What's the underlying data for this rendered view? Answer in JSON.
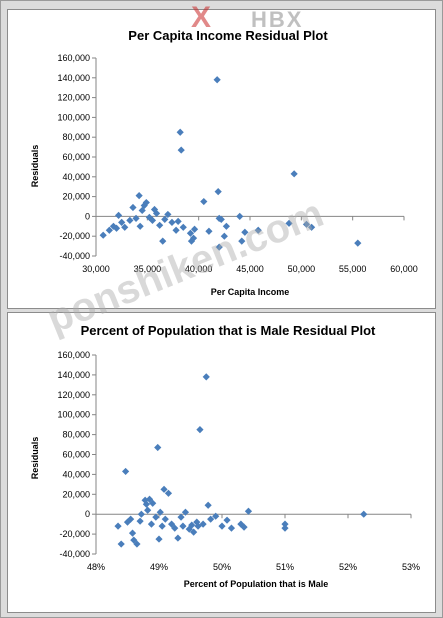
{
  "watermark": {
    "logo_x": "X",
    "logo_text": "HBX",
    "site": "ponshiken.com"
  },
  "chart_data": [
    {
      "type": "scatter",
      "title": "Per Capita Income Residual Plot",
      "xlabel": "Per Capita Income",
      "ylabel": "Residuals",
      "xlim": [
        30000,
        60000
      ],
      "ylim": [
        -40000,
        160000
      ],
      "x_ticks": [
        "30,000",
        "35,000",
        "40,000",
        "45,000",
        "50,000",
        "55,000",
        "60,000"
      ],
      "y_ticks": [
        "160,000",
        "140,000",
        "120,000",
        "100,000",
        "80,000",
        "60,000",
        "40,000",
        "20,000",
        "0",
        "-20,000",
        "-40,000"
      ],
      "marker_color": "#4a7ebb",
      "points": [
        [
          30700,
          -19000
        ],
        [
          31300,
          -14000
        ],
        [
          31700,
          -10000
        ],
        [
          32000,
          -12000
        ],
        [
          32200,
          1000
        ],
        [
          32500,
          -6000
        ],
        [
          32800,
          -11000
        ],
        [
          33300,
          -4000
        ],
        [
          33600,
          9000
        ],
        [
          33900,
          -2000
        ],
        [
          34200,
          21000
        ],
        [
          34300,
          -10000
        ],
        [
          34500,
          6000
        ],
        [
          34700,
          11000
        ],
        [
          34900,
          14000
        ],
        [
          35200,
          -1000
        ],
        [
          35500,
          -4000
        ],
        [
          35700,
          7000
        ],
        [
          35900,
          3000
        ],
        [
          36200,
          -9000
        ],
        [
          36500,
          -25000
        ],
        [
          36700,
          -3000
        ],
        [
          37000,
          2000
        ],
        [
          37400,
          -6000
        ],
        [
          37800,
          -14000
        ],
        [
          38000,
          -5000
        ],
        [
          38200,
          85000
        ],
        [
          38300,
          67000
        ],
        [
          38500,
          -11000
        ],
        [
          39200,
          -17000
        ],
        [
          39300,
          -25000
        ],
        [
          39500,
          -22000
        ],
        [
          39600,
          -13000
        ],
        [
          40500,
          15000
        ],
        [
          41000,
          -15000
        ],
        [
          41800,
          138000
        ],
        [
          41900,
          25000
        ],
        [
          42000,
          -2000
        ],
        [
          42000,
          -31000
        ],
        [
          42200,
          -3000
        ],
        [
          42500,
          -20000
        ],
        [
          42700,
          -10000
        ],
        [
          44000,
          0
        ],
        [
          44200,
          -25000
        ],
        [
          44500,
          -16000
        ],
        [
          45800,
          -14000
        ],
        [
          48800,
          -7000
        ],
        [
          49300,
          43000
        ],
        [
          50500,
          -8000
        ],
        [
          51000,
          -11000
        ],
        [
          55500,
          -27000
        ]
      ]
    },
    {
      "type": "scatter",
      "title": "Percent of Population that is Male Residual Plot",
      "xlabel": "Percent of Population  that is Male",
      "ylabel": "Residuals",
      "xlim": [
        48,
        53
      ],
      "ylim": [
        -40000,
        160000
      ],
      "x_ticks": [
        "48%",
        "49%",
        "50%",
        "51%",
        "52%",
        "53%"
      ],
      "y_ticks": [
        "160,000",
        "140,000",
        "120,000",
        "100,000",
        "80,000",
        "60,000",
        "40,000",
        "20,000",
        "0",
        "-20,000",
        "-40,000"
      ],
      "marker_color": "#4a7ebb",
      "points": [
        [
          48.35,
          -12000
        ],
        [
          48.4,
          -30000
        ],
        [
          48.47,
          43000
        ],
        [
          48.5,
          -8000
        ],
        [
          48.55,
          -5000
        ],
        [
          48.58,
          -19000
        ],
        [
          48.6,
          -26000
        ],
        [
          48.65,
          -30000
        ],
        [
          48.7,
          -7000
        ],
        [
          48.72,
          0
        ],
        [
          48.78,
          14000
        ],
        [
          48.8,
          10000
        ],
        [
          48.82,
          4000
        ],
        [
          48.85,
          15000
        ],
        [
          48.88,
          -10000
        ],
        [
          48.9,
          11000
        ],
        [
          48.95,
          -3000
        ],
        [
          48.98,
          67000
        ],
        [
          49.0,
          -25000
        ],
        [
          49.02,
          2000
        ],
        [
          49.05,
          -12000
        ],
        [
          49.08,
          25000
        ],
        [
          49.1,
          -5000
        ],
        [
          49.15,
          21000
        ],
        [
          49.2,
          -10000
        ],
        [
          49.25,
          -14000
        ],
        [
          49.3,
          -24000
        ],
        [
          49.35,
          -3000
        ],
        [
          49.38,
          -12000
        ],
        [
          49.42,
          2000
        ],
        [
          49.48,
          -15000
        ],
        [
          49.52,
          -11000
        ],
        [
          49.55,
          -18000
        ],
        [
          49.6,
          -8000
        ],
        [
          49.62,
          -12000
        ],
        [
          49.65,
          85000
        ],
        [
          49.7,
          -10000
        ],
        [
          49.75,
          138000
        ],
        [
          49.78,
          9000
        ],
        [
          49.82,
          -5000
        ],
        [
          49.9,
          -2000
        ],
        [
          50.0,
          -12000
        ],
        [
          50.08,
          -6000
        ],
        [
          50.15,
          -14000
        ],
        [
          50.3,
          -10000
        ],
        [
          50.35,
          -13000
        ],
        [
          50.42,
          3000
        ],
        [
          51.0,
          -10000
        ],
        [
          51.0,
          -14000
        ],
        [
          52.25,
          0
        ]
      ]
    }
  ]
}
